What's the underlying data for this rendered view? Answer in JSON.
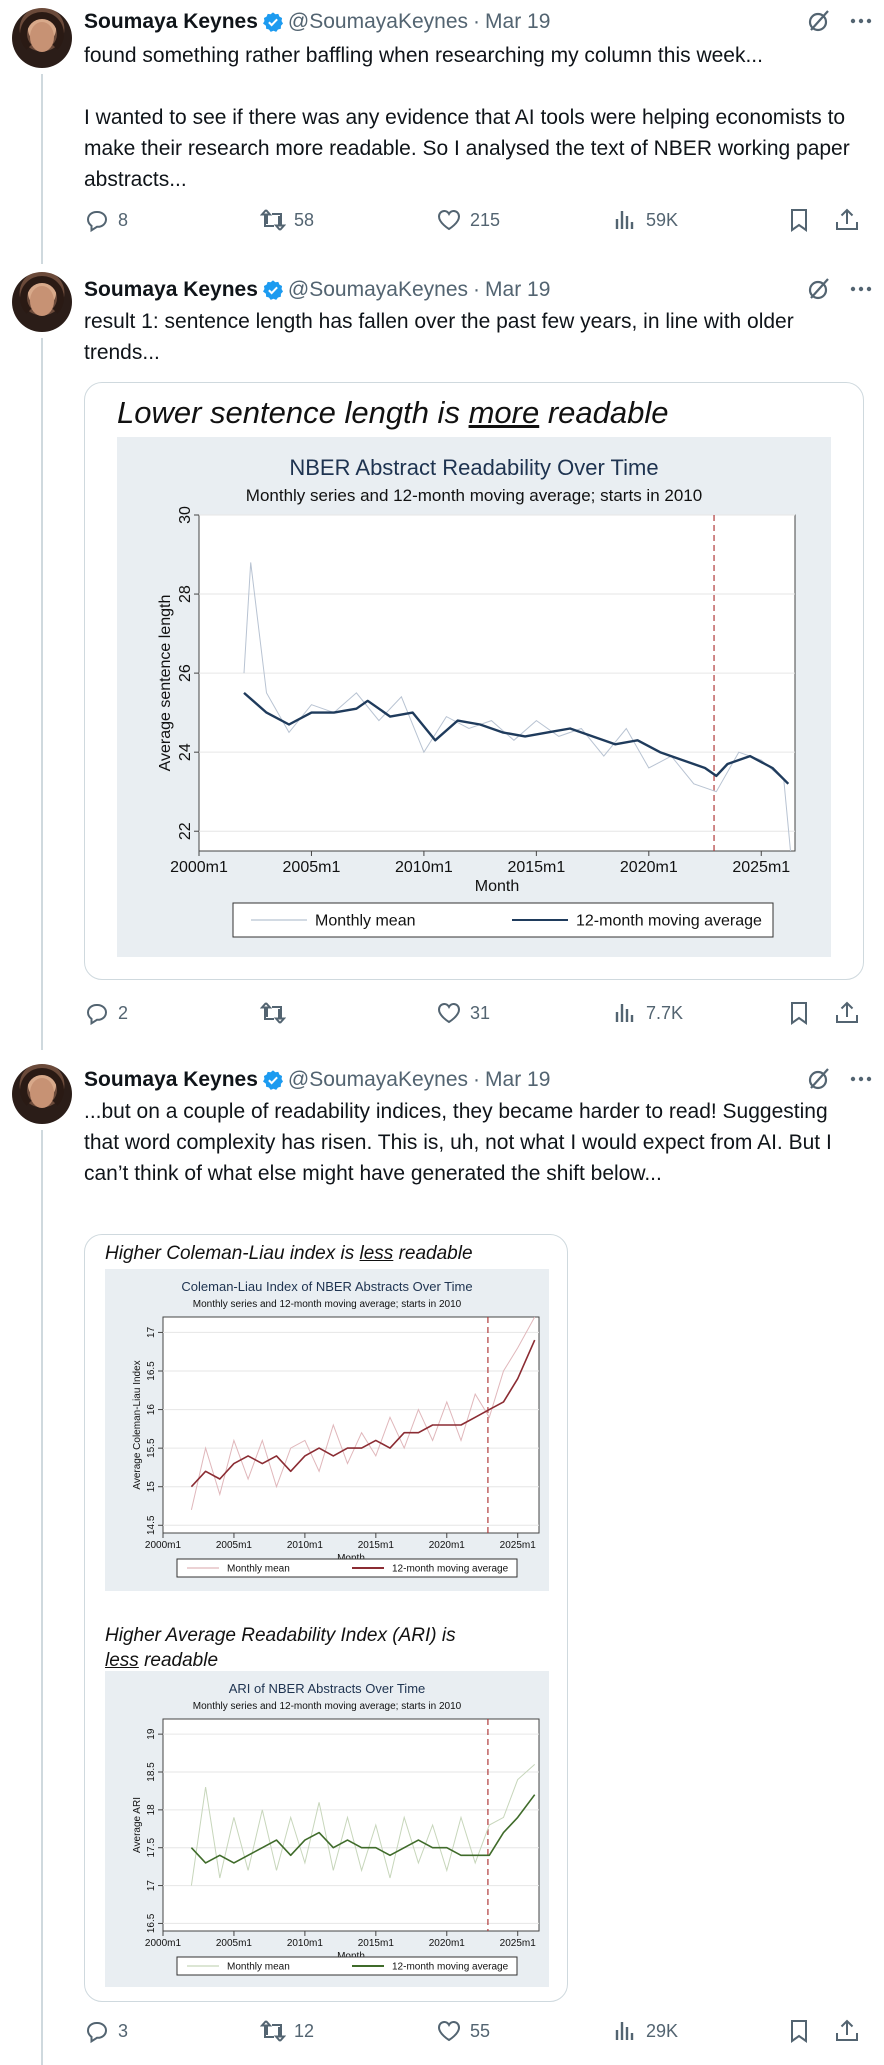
{
  "tweets": [
    {
      "author": {
        "name": "Soumaya Keynes",
        "handle": "@SoumayaKeynes",
        "sep": "·",
        "date": "Mar 19"
      },
      "paragraphs": [
        "found something rather baffling when researching my column this week...",
        "I wanted to see if there was any evidence that AI tools were helping economists to make their research more readable. So I analysed the text of NBER working paper abstracts..."
      ],
      "stats": {
        "replies": "8",
        "reposts": "58",
        "likes": "215",
        "views": "59K"
      }
    },
    {
      "author": {
        "name": "Soumaya Keynes",
        "handle": "@SoumayaKeynes",
        "sep": "·",
        "date": "Mar 19"
      },
      "paragraphs": [
        "result 1: sentence length has fallen over the past few years, in line with older trends..."
      ],
      "card_caption": {
        "pre": "Lower sentence length is ",
        "em": "more",
        "post": " readable"
      },
      "stats": {
        "replies": "2",
        "reposts": "",
        "likes": "31",
        "views": "7.7K"
      }
    },
    {
      "author": {
        "name": "Soumaya Keynes",
        "handle": "@SoumayaKeynes",
        "sep": "·",
        "date": "Mar 19"
      },
      "paragraphs": [
        "...but on a couple of readability indices, they became harder to read! Suggesting that word complexity has risen. This is, uh, not what I would expect from AI. But I can’t think of what else might have generated the shift below..."
      ],
      "card_caption_1": {
        "pre": "Higher Coleman-Liau index is ",
        "em": "less",
        "post": " readable"
      },
      "card_caption_2": {
        "line1": "Higher Average Readability Index (ARI) is",
        "em": "less",
        "post": " readable"
      },
      "stats": {
        "replies": "3",
        "reposts": "12",
        "likes": "55",
        "views": "29K"
      }
    }
  ],
  "icons": {
    "verified": "verified-badge-icon",
    "grok": "grok-icon",
    "more": "more-icon",
    "reply": "reply-icon",
    "repost": "repost-icon",
    "like": "like-icon",
    "views": "views-icon",
    "bookmark": "bookmark-icon",
    "share": "share-icon"
  },
  "colors": {
    "verified": "#1d9bf0",
    "muted": "#536471",
    "navy": "#1f3b5c",
    "red": "#8b2c33",
    "green": "#3f6b2a",
    "dashed": "#b03a3a"
  },
  "chart_data": [
    {
      "type": "line",
      "title": "NBER Abstract Readability Over Time",
      "subtitle": "Monthly series and 12-month moving average; starts in 2010",
      "xlabel": "Month",
      "ylabel": "Average sentence length",
      "xticks": [
        "2000m1",
        "2005m1",
        "2010m1",
        "2015m1",
        "2020m1",
        "2025m1"
      ],
      "yticks": [
        "22",
        "24",
        "26",
        "28",
        "30"
      ],
      "xlim": [
        2000,
        2026.5
      ],
      "ylim": [
        21.5,
        30
      ],
      "vline": 2022.9,
      "legend": [
        "Monthly mean",
        "12-month moving average"
      ],
      "series": [
        {
          "name": "12-month moving average",
          "x": [
            2002.0,
            2003.0,
            2004.0,
            2005.0,
            2006.0,
            2007.0,
            2007.5,
            2008.5,
            2009.5,
            2010.5,
            2011.5,
            2012.5,
            2013.5,
            2014.5,
            2015.5,
            2016.5,
            2017.5,
            2018.5,
            2019.5,
            2020.5,
            2021.5,
            2022.5,
            2023.0,
            2023.5,
            2024.5,
            2025.5,
            2026.2
          ],
          "y": [
            25.5,
            25.0,
            24.7,
            25.0,
            25.0,
            25.1,
            25.3,
            24.9,
            25.0,
            24.3,
            24.8,
            24.7,
            24.5,
            24.4,
            24.5,
            24.6,
            24.4,
            24.2,
            24.3,
            24.0,
            23.8,
            23.6,
            23.4,
            23.7,
            23.9,
            23.6,
            23.2
          ]
        },
        {
          "name": "Monthly mean",
          "x": [
            2002.0,
            2002.3,
            2003.0,
            2004.0,
            2005.0,
            2006.0,
            2007.0,
            2008.0,
            2009.0,
            2010.0,
            2011.0,
            2012.0,
            2013.0,
            2014.0,
            2015.0,
            2016.0,
            2017.0,
            2018.0,
            2019.0,
            2020.0,
            2021.0,
            2022.0,
            2023.0,
            2024.0,
            2025.0,
            2026.0,
            2026.3
          ],
          "y": [
            26.0,
            28.8,
            25.5,
            24.5,
            25.2,
            25.0,
            25.5,
            24.8,
            25.4,
            24.0,
            24.9,
            24.6,
            24.8,
            24.3,
            24.8,
            24.4,
            24.6,
            23.9,
            24.6,
            23.6,
            23.9,
            23.2,
            23.0,
            24.0,
            23.8,
            23.3,
            21.5
          ]
        }
      ]
    },
    {
      "type": "line",
      "title": "Coleman-Liau Index of NBER Abstracts Over Time",
      "subtitle": "Monthly series and 12-month moving average; starts in 2010",
      "xlabel": "Month",
      "ylabel": "Average Coleman-Liau Index",
      "xticks": [
        "2000m1",
        "2005m1",
        "2010m1",
        "2015m1",
        "2020m1",
        "2025m1"
      ],
      "yticks": [
        "14.5",
        "15",
        "15.5",
        "16",
        "16.5",
        "17"
      ],
      "xlim": [
        2000,
        2026.5
      ],
      "ylim": [
        14.4,
        17.2
      ],
      "vline": 2022.9,
      "legend": [
        "Monthly mean",
        "12-month moving average"
      ],
      "series": [
        {
          "name": "12-month moving average",
          "x": [
            2002.0,
            2003.0,
            2004.0,
            2005.0,
            2006.0,
            2007.0,
            2008.0,
            2009.0,
            2010.0,
            2011.0,
            2012.0,
            2013.0,
            2014.0,
            2015.0,
            2016.0,
            2017.0,
            2018.0,
            2019.0,
            2020.0,
            2021.0,
            2022.0,
            2023.0,
            2024.0,
            2025.0,
            2026.2
          ],
          "y": [
            15.0,
            15.2,
            15.1,
            15.3,
            15.4,
            15.3,
            15.4,
            15.2,
            15.4,
            15.5,
            15.4,
            15.5,
            15.5,
            15.6,
            15.5,
            15.7,
            15.7,
            15.8,
            15.8,
            15.8,
            15.9,
            16.0,
            16.1,
            16.4,
            16.9
          ]
        },
        {
          "name": "Monthly mean",
          "x": [
            2002.0,
            2003.0,
            2004.0,
            2005.0,
            2006.0,
            2007.0,
            2008.0,
            2009.0,
            2010.0,
            2011.0,
            2012.0,
            2013.0,
            2014.0,
            2015.0,
            2016.0,
            2017.0,
            2018.0,
            2019.0,
            2020.0,
            2021.0,
            2022.0,
            2023.0,
            2024.0,
            2025.0,
            2026.2
          ],
          "y": [
            14.7,
            15.5,
            14.9,
            15.6,
            15.1,
            15.6,
            15.0,
            15.5,
            15.6,
            15.2,
            15.8,
            15.3,
            15.7,
            15.4,
            15.9,
            15.5,
            16.0,
            15.6,
            16.1,
            15.6,
            16.2,
            15.9,
            16.5,
            16.8,
            17.2
          ]
        }
      ]
    },
    {
      "type": "line",
      "title": "ARI of NBER Abstracts Over Time",
      "subtitle": "Monthly series and 12-month moving average; starts in 2010",
      "xlabel": "Month",
      "ylabel": "Average ARI",
      "xticks": [
        "2000m1",
        "2005m1",
        "2010m1",
        "2015m1",
        "2020m1",
        "2025m1"
      ],
      "yticks": [
        "16.5",
        "17",
        "17.5",
        "18",
        "18.5",
        "19"
      ],
      "xlim": [
        2000,
        2026.5
      ],
      "ylim": [
        16.4,
        19.2
      ],
      "vline": 2022.9,
      "legend": [
        "Monthly mean",
        "12-month moving average"
      ],
      "series": [
        {
          "name": "12-month moving average",
          "x": [
            2002.0,
            2003.0,
            2004.0,
            2005.0,
            2006.0,
            2007.0,
            2008.0,
            2009.0,
            2010.0,
            2011.0,
            2012.0,
            2013.0,
            2014.0,
            2015.0,
            2016.0,
            2017.0,
            2018.0,
            2019.0,
            2020.0,
            2021.0,
            2022.0,
            2023.0,
            2024.0,
            2025.0,
            2026.2
          ],
          "y": [
            17.5,
            17.3,
            17.4,
            17.3,
            17.4,
            17.5,
            17.6,
            17.4,
            17.6,
            17.7,
            17.5,
            17.6,
            17.5,
            17.5,
            17.4,
            17.5,
            17.6,
            17.5,
            17.5,
            17.4,
            17.4,
            17.4,
            17.7,
            17.9,
            18.2
          ]
        },
        {
          "name": "Monthly mean",
          "x": [
            2002.0,
            2003.0,
            2004.0,
            2005.0,
            2006.0,
            2007.0,
            2008.0,
            2009.0,
            2010.0,
            2011.0,
            2012.0,
            2013.0,
            2014.0,
            2015.0,
            2016.0,
            2017.0,
            2018.0,
            2019.0,
            2020.0,
            2021.0,
            2022.0,
            2023.0,
            2024.0,
            2025.0,
            2026.2
          ],
          "y": [
            17.0,
            18.3,
            17.1,
            17.9,
            17.2,
            18.0,
            17.2,
            17.9,
            17.3,
            18.1,
            17.2,
            17.9,
            17.2,
            17.8,
            17.1,
            17.9,
            17.3,
            17.8,
            17.2,
            17.9,
            17.3,
            17.8,
            17.9,
            18.4,
            18.6
          ]
        }
      ]
    }
  ]
}
